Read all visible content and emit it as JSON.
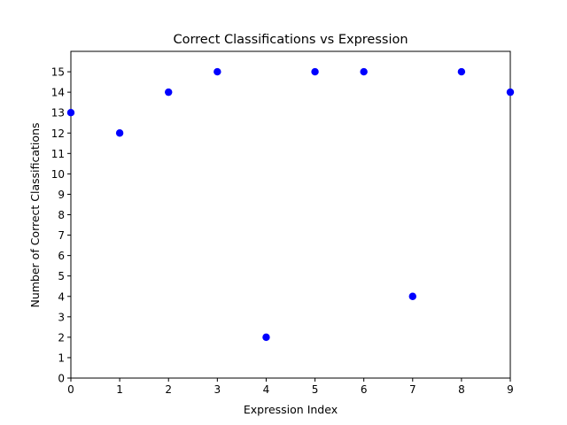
{
  "chart_data": {
    "type": "scatter",
    "title": "Correct Classifications vs Expression",
    "xlabel": "Expression Index",
    "ylabel": "Number of Correct Classifications",
    "x": [
      0,
      1,
      2,
      3,
      4,
      5,
      6,
      7,
      8,
      9
    ],
    "y": [
      13,
      12,
      14,
      15,
      2,
      15,
      15,
      4,
      15,
      14
    ],
    "xlim": [
      0,
      9
    ],
    "ylim": [
      0,
      16
    ],
    "xticks": [
      "0",
      "1",
      "2",
      "3",
      "4",
      "5",
      "6",
      "7",
      "8",
      "9"
    ],
    "yticks": [
      "0",
      "1",
      "2",
      "3",
      "4",
      "5",
      "6",
      "7",
      "8",
      "9",
      "10",
      "11",
      "12",
      "13",
      "14",
      "15"
    ],
    "marker_color": "#0000ff",
    "grid": false
  }
}
